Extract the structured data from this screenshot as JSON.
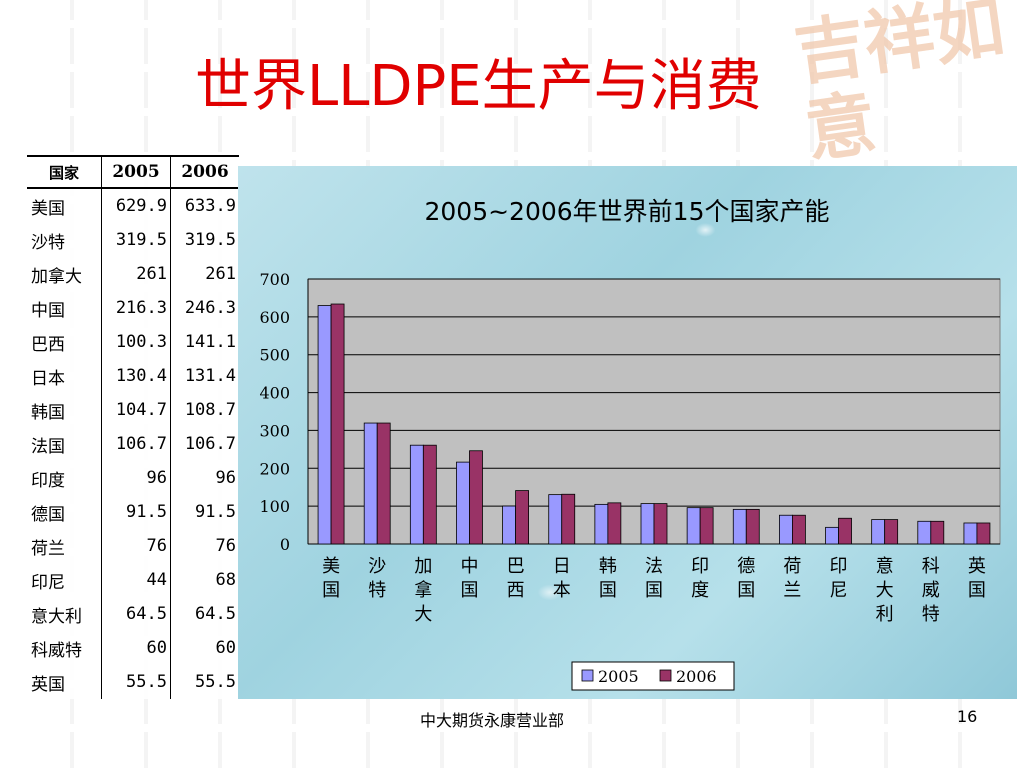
{
  "slide": {
    "title": "世界LLDPE生产与消费",
    "footer": "中大期货永康营业部",
    "page_number": "16",
    "watermark_text": "吉祥如意"
  },
  "table": {
    "headers": [
      "国家",
      "2005",
      "2006"
    ],
    "rows": [
      [
        "美国",
        "629.9",
        "633.9"
      ],
      [
        "沙特",
        "319.5",
        "319.5"
      ],
      [
        "加拿大",
        "261",
        "261"
      ],
      [
        "中国",
        "216.3",
        "246.3"
      ],
      [
        "巴西",
        "100.3",
        "141.1"
      ],
      [
        "日本",
        "130.4",
        "131.4"
      ],
      [
        "韩国",
        "104.7",
        "108.7"
      ],
      [
        "法国",
        "106.7",
        "106.7"
      ],
      [
        "印度",
        "96",
        "96"
      ],
      [
        "德国",
        "91.5",
        "91.5"
      ],
      [
        "荷兰",
        "76",
        "76"
      ],
      [
        "印尼",
        "44",
        "68"
      ],
      [
        "意大利",
        "64.5",
        "64.5"
      ],
      [
        "科威特",
        "60",
        "60"
      ],
      [
        "英国",
        "55.5",
        "55.5"
      ]
    ]
  },
  "chart_data": {
    "type": "bar",
    "title": "2005~2006年世界前15个国家产能",
    "categories": [
      "美国",
      "沙特",
      "加拿大",
      "中国",
      "巴西",
      "日本",
      "韩国",
      "法国",
      "印度",
      "德国",
      "荷兰",
      "印尼",
      "意大利",
      "科威特",
      "英国"
    ],
    "series": [
      {
        "name": "2005",
        "color": "#9999ff",
        "values": [
          629.9,
          319.5,
          261,
          216.3,
          100.3,
          130.4,
          104.7,
          106.7,
          96,
          91.5,
          76,
          44,
          64.5,
          60,
          55.5
        ]
      },
      {
        "name": "2006",
        "color": "#993366",
        "values": [
          633.9,
          319.5,
          261,
          246.3,
          141.1,
          131.4,
          108.7,
          106.7,
          96,
          91.5,
          76,
          68,
          64.5,
          60,
          55.5
        ]
      }
    ],
    "ylim": [
      0,
      700
    ],
    "yticks": [
      0,
      100,
      200,
      300,
      400,
      500,
      600,
      700
    ],
    "grid": true,
    "plot_background": "#c0c0c0",
    "legend_position": "bottom"
  }
}
